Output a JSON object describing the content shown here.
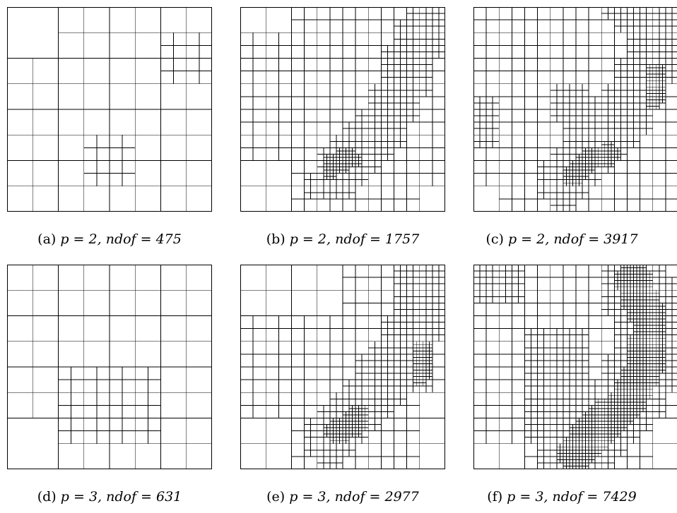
{
  "figure": {
    "panels": [
      {
        "id": "a",
        "tag": "(a)",
        "p_label": "p = 2,",
        "ndof_label": "ndof = 475",
        "p": 2,
        "ndof": 475
      },
      {
        "id": "b",
        "tag": "(b)",
        "p_label": "p = 2,",
        "ndof_label": "ndof = 1757",
        "p": 2,
        "ndof": 1757
      },
      {
        "id": "c",
        "tag": "(c)",
        "p_label": "p = 2,",
        "ndof_label": "ndof = 3917",
        "p": 2,
        "ndof": 3917
      },
      {
        "id": "d",
        "tag": "(d)",
        "p_label": "p = 3,",
        "ndof_label": "ndof = 631",
        "p": 3,
        "ndof": 631
      },
      {
        "id": "e",
        "tag": "(e)",
        "p_label": "p = 3,",
        "ndof_label": "ndof = 2977",
        "p": 3,
        "ndof": 2977
      },
      {
        "id": "f",
        "tag": "(f)",
        "p_label": "p = 3,",
        "ndof_label": "ndof = 7429",
        "p": 3,
        "ndof": 7429
      }
    ]
  }
}
